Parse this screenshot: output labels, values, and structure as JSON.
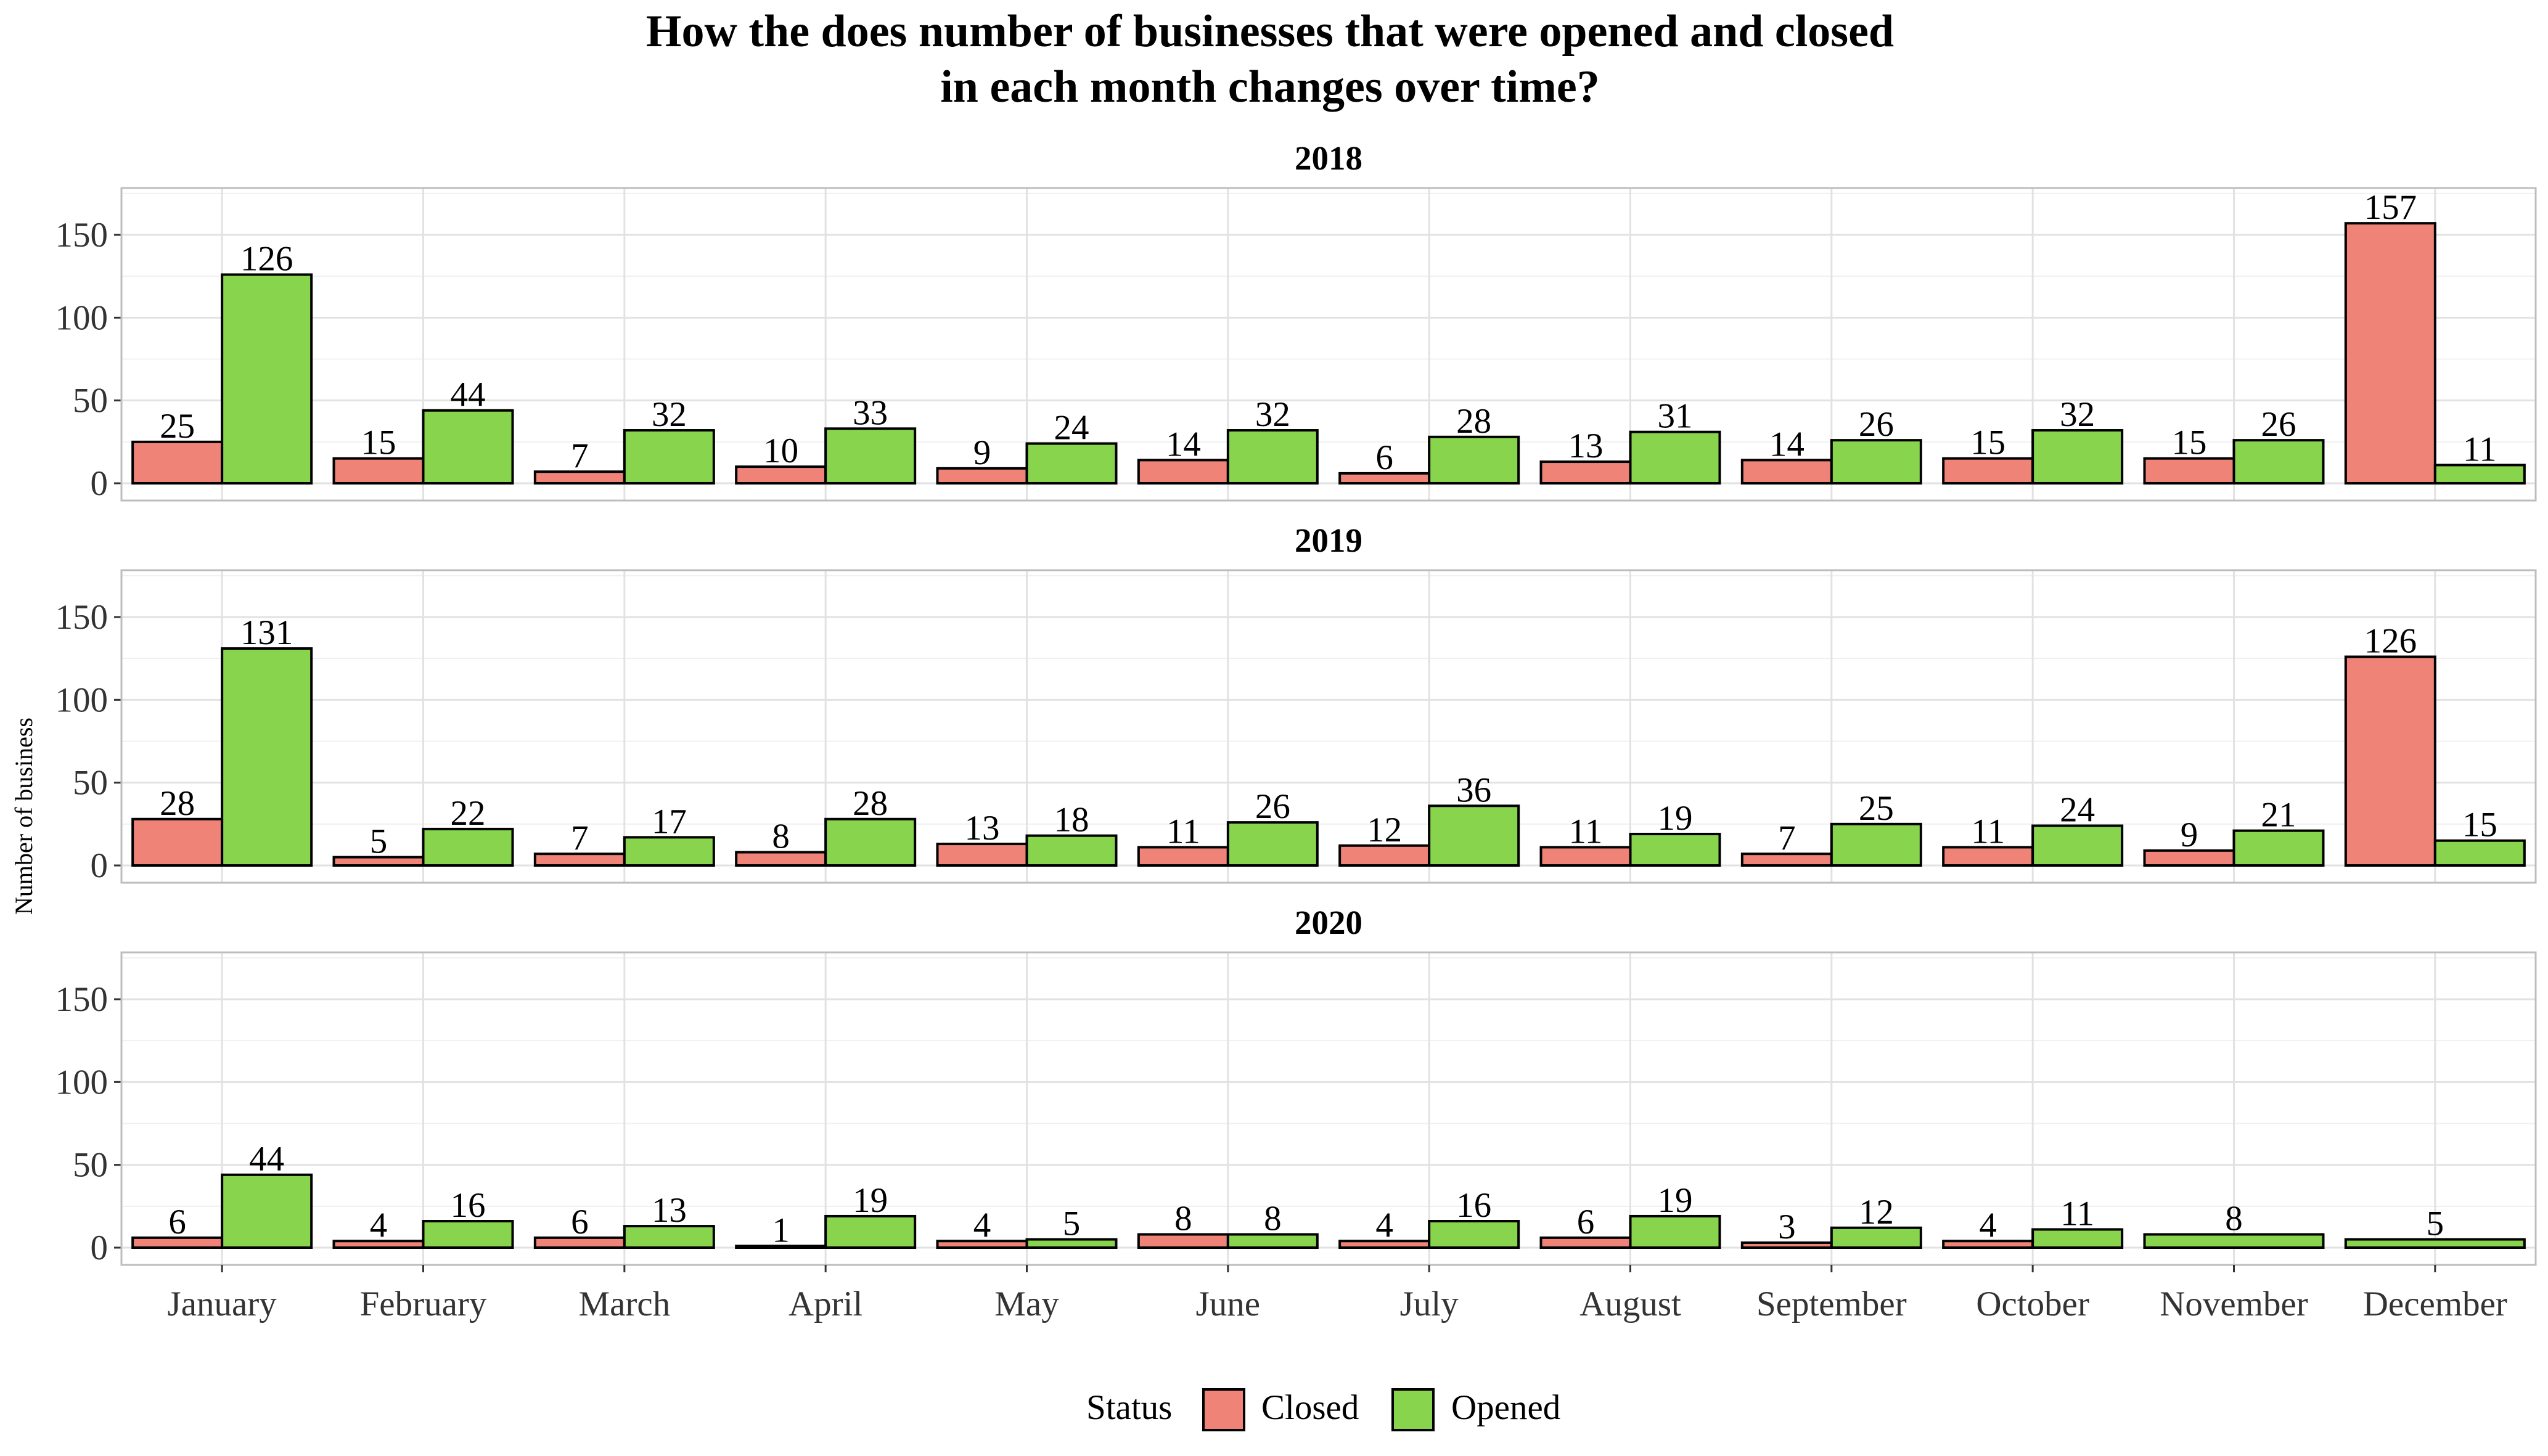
{
  "chart_data": {
    "type": "bar",
    "title_line1": "How the does number of businesses that were opened and closed",
    "title_line2": "in each month changes over time?",
    "xlabel": "",
    "ylabel": "Number of business",
    "ylim": [
      0,
      175
    ],
    "yticks": [
      0,
      50,
      100,
      150
    ],
    "grid": true,
    "legend_position": "bottom",
    "legend_title": "Status",
    "categories": [
      "January",
      "February",
      "March",
      "April",
      "May",
      "June",
      "July",
      "August",
      "September",
      "October",
      "November",
      "December"
    ],
    "series_meta": [
      {
        "name": "Closed",
        "color": "#F08377"
      },
      {
        "name": "Opened",
        "color": "#88D54D"
      }
    ],
    "facets": [
      {
        "label": "2018",
        "closed": [
          25,
          15,
          7,
          10,
          9,
          14,
          6,
          13,
          14,
          15,
          15,
          157
        ],
        "opened": [
          126,
          44,
          32,
          33,
          24,
          32,
          28,
          31,
          26,
          32,
          26,
          11
        ]
      },
      {
        "label": "2019",
        "closed": [
          28,
          5,
          7,
          8,
          13,
          11,
          12,
          11,
          7,
          11,
          9,
          126
        ],
        "opened": [
          131,
          22,
          17,
          28,
          18,
          26,
          36,
          19,
          25,
          24,
          21,
          15
        ]
      },
      {
        "label": "2020",
        "closed": [
          6,
          4,
          6,
          1,
          4,
          8,
          4,
          6,
          3,
          4,
          null,
          null
        ],
        "opened": [
          44,
          16,
          13,
          19,
          5,
          8,
          16,
          19,
          12,
          11,
          8,
          5
        ]
      }
    ]
  }
}
